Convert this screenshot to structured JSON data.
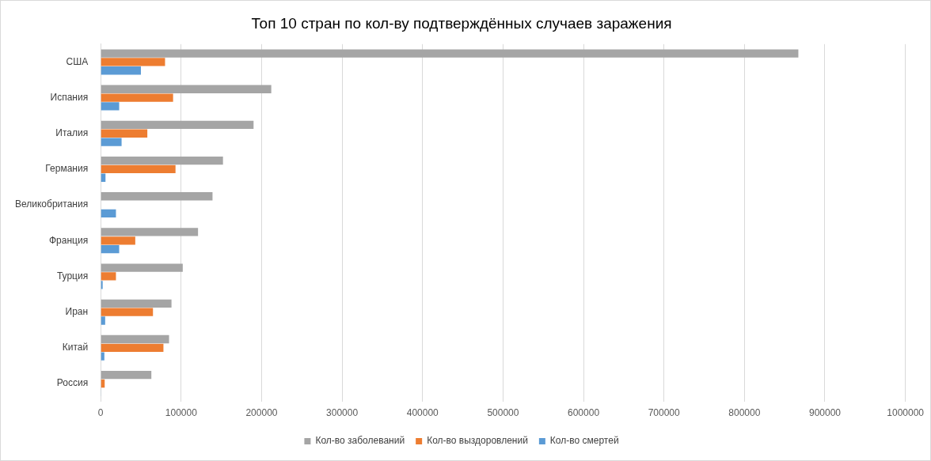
{
  "chart_data": {
    "type": "bar",
    "orientation": "horizontal",
    "title": "Топ 10 стран по кол-ву подтверждённых случаев заражения",
    "categories": [
      "США",
      "Испания",
      "Италия",
      "Германия",
      "Великобритания",
      "Франция",
      "Турция",
      "Иран",
      "Китай",
      "Россия"
    ],
    "series": [
      {
        "name": "Кол-во заболеваний",
        "color": "#a5a5a5",
        "values": [
          867000,
          212000,
          190000,
          152000,
          139000,
          121000,
          102000,
          88000,
          85000,
          63000
        ]
      },
      {
        "name": "Кол-во выздоровлений",
        "color": "#ed7d31",
        "values": [
          80000,
          90000,
          58000,
          93000,
          null,
          43000,
          19000,
          65000,
          78000,
          5000
        ]
      },
      {
        "name": "Кол-во смертей",
        "color": "#5b9bd5",
        "values": [
          50000,
          23000,
          26000,
          6000,
          19000,
          23000,
          2500,
          5600,
          4600,
          600
        ]
      }
    ],
    "xlim": [
      0,
      1000000
    ],
    "xticks": [
      0,
      100000,
      200000,
      300000,
      400000,
      500000,
      600000,
      700000,
      800000,
      900000,
      1000000
    ],
    "grid": true,
    "legend": "bottom"
  }
}
